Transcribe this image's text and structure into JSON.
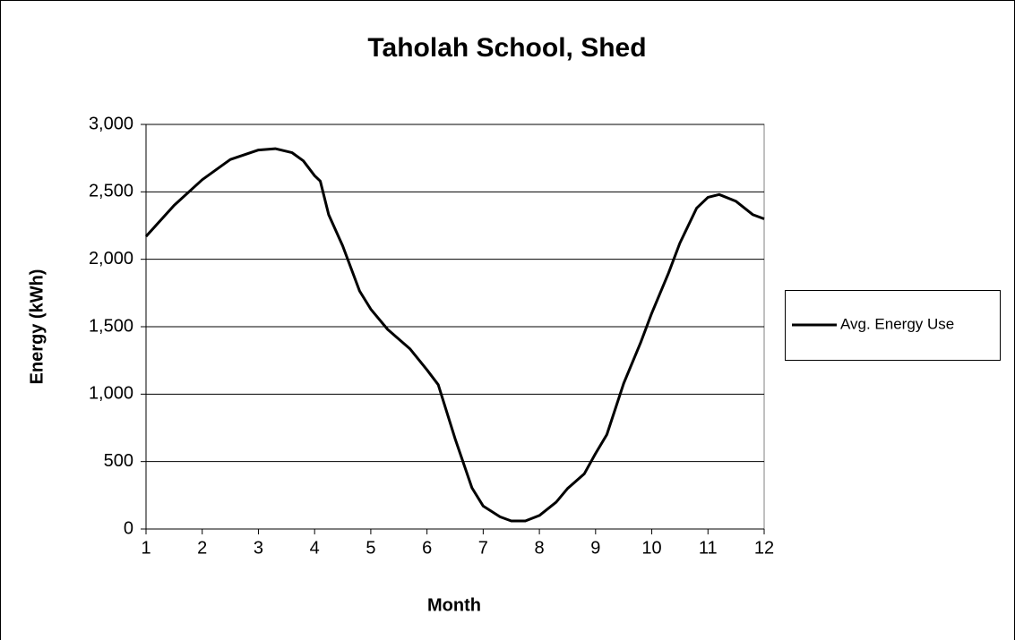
{
  "chart_data": {
    "type": "line",
    "title": "Taholah School, Shed",
    "xlabel": "Month",
    "ylabel": "Energy (kWh)",
    "x": [
      1,
      1.5,
      2,
      2.5,
      3,
      3.3,
      3.6,
      3.8,
      4,
      4.1,
      4.25,
      4.5,
      4.8,
      5,
      5.3,
      5.7,
      6,
      6.2,
      6.5,
      6.8,
      7,
      7.3,
      7.5,
      7.75,
      8,
      8.3,
      8.5,
      8.8,
      9,
      9.2,
      9.5,
      9.8,
      10,
      10.3,
      10.5,
      10.8,
      11,
      11.2,
      11.5,
      11.8,
      12
    ],
    "series": [
      {
        "name": "Avg. Energy Use",
        "color": "#000000",
        "values": [
          2170,
          2400,
          2590,
          2740,
          2810,
          2820,
          2790,
          2730,
          2620,
          2580,
          2330,
          2100,
          1765,
          1630,
          1480,
          1335,
          1180,
          1070,
          670,
          305,
          170,
          90,
          60,
          60,
          100,
          200,
          300,
          410,
          560,
          700,
          1080,
          1380,
          1600,
          1900,
          2120,
          2380,
          2460,
          2480,
          2430,
          2330,
          2300
        ]
      }
    ],
    "xlim": [
      1,
      12
    ],
    "xticks": [
      1,
      2,
      3,
      4,
      5,
      6,
      7,
      8,
      9,
      10,
      11,
      12
    ],
    "ylim": [
      0,
      3000
    ],
    "yticks": [
      0,
      500,
      {
        "value": 1000,
        "label": "1,000"
      },
      {
        "value": 1500,
        "label": "1,500"
      },
      {
        "value": 2000,
        "label": "2,000"
      },
      {
        "value": 2500,
        "label": "2,500"
      },
      {
        "value": 3000,
        "label": "3,000"
      }
    ],
    "grid": true,
    "legend": "right"
  }
}
